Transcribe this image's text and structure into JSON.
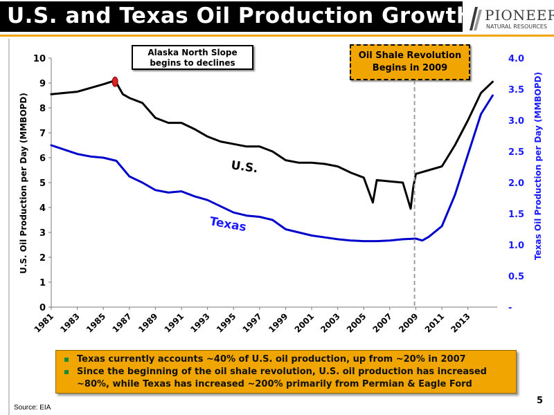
{
  "header": {
    "title": "U.S. and Texas Oil Production Growth",
    "logo_main": "PIONEER",
    "logo_sub": "NATURAL RESOURCES"
  },
  "colors": {
    "us_line": "#000000",
    "texas_line": "#0000cc",
    "accent": "#f0a500",
    "marker_2009": "#a0a0a0",
    "alaska_marker": "#dd2222"
  },
  "chart_data": {
    "type": "line",
    "xlabel": "",
    "ylabel": "U.S. Oil Production per Day (MMBOPD)",
    "ylabel_right": "Texas Oil Production per Day (MMBOPD)",
    "ylim": [
      0,
      10
    ],
    "ylim_right": [
      0,
      4
    ],
    "yticks": [
      "0",
      "1",
      "2",
      "3",
      "4",
      "5",
      "6",
      "7",
      "8",
      "9",
      "10"
    ],
    "yticks_right": [
      "-",
      "0.5",
      "1.0",
      "1.5",
      "2.0",
      "2.5",
      "3.0",
      "3.5",
      "4.0"
    ],
    "xlim": [
      1981,
      2015.25
    ],
    "xticks": [
      "1981",
      "1983",
      "1985",
      "1987",
      "1989",
      "1991",
      "1993",
      "1995",
      "1997",
      "1999",
      "2001",
      "2003",
      "2005",
      "2007",
      "2009",
      "2011",
      "2013"
    ],
    "grid": false,
    "series": [
      {
        "name": "U.S.",
        "axis": "left",
        "x": [
          1981,
          1982,
          1983,
          1984,
          1985,
          1985.9,
          1986.5,
          1987,
          1988,
          1989,
          1990,
          1991,
          1992,
          1993,
          1994,
          1995,
          1996,
          1997,
          1998,
          1999,
          2000,
          2001,
          2002,
          2003,
          2004,
          2005,
          2005.7,
          2006,
          2007,
          2008,
          2008.6,
          2008.8,
          2009,
          2010,
          2011,
          2012,
          2013,
          2014,
          2014.9
        ],
        "y": [
          8.55,
          8.6,
          8.65,
          8.8,
          8.95,
          9.1,
          8.55,
          8.4,
          8.2,
          7.6,
          7.4,
          7.4,
          7.15,
          6.85,
          6.65,
          6.55,
          6.45,
          6.45,
          6.25,
          5.9,
          5.8,
          5.8,
          5.75,
          5.65,
          5.4,
          5.2,
          4.2,
          5.1,
          5.05,
          5.0,
          3.95,
          4.8,
          5.35,
          5.5,
          5.65,
          6.5,
          7.5,
          8.6,
          9.05
        ]
      },
      {
        "name": "Texas",
        "axis": "right",
        "x": [
          1981,
          1982,
          1983,
          1984,
          1985,
          1986,
          1987,
          1988,
          1989,
          1990,
          1991,
          1992,
          1993,
          1994,
          1995,
          1996,
          1997,
          1998,
          1999,
          2000,
          2001,
          2002,
          2003,
          2004,
          2005,
          2006,
          2007,
          2008,
          2009,
          2009.5,
          2010,
          2011,
          2012,
          2013,
          2014,
          2014.9
        ],
        "y": [
          2.6,
          2.53,
          2.46,
          2.42,
          2.4,
          2.35,
          2.1,
          2.0,
          1.88,
          1.84,
          1.86,
          1.78,
          1.72,
          1.62,
          1.52,
          1.47,
          1.45,
          1.4,
          1.25,
          1.2,
          1.15,
          1.12,
          1.09,
          1.07,
          1.06,
          1.06,
          1.07,
          1.09,
          1.1,
          1.07,
          1.13,
          1.3,
          1.8,
          2.45,
          3.1,
          3.4
        ]
      }
    ],
    "annotations": {
      "us_label": "U.S.",
      "texas_label": "Texas",
      "alaska_note": "Alaska North Slope begins to declines",
      "alaska_year": 1985.9,
      "alaska_value": 9.05,
      "shale_note": "Oil Shale Revolution Begins in 2009",
      "shale_year": 2008.9
    }
  },
  "callout": {
    "bullets": [
      "Texas currently accounts ~40% of U.S. oil production, up from ~20% in 2007",
      "Since the beginning of the oil shale revolution, U.S. oil production has increased ~80%, while Texas has increased ~200% primarily from Permian & Eagle Ford"
    ]
  },
  "footer": {
    "source": "Source: EIA",
    "page_number": "5"
  }
}
